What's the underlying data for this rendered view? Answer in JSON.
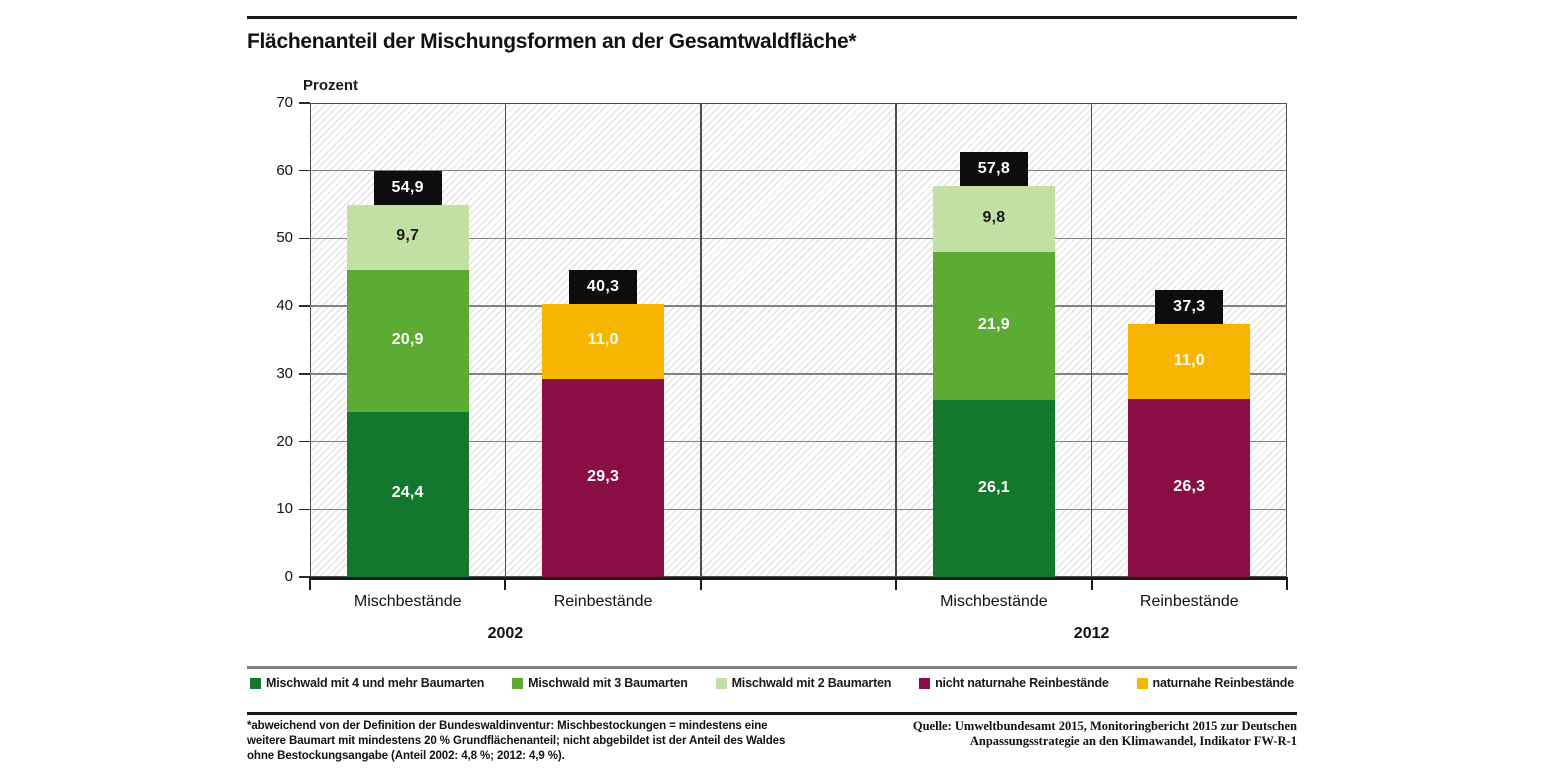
{
  "header": {
    "title": "Flächenanteil der Mischungsformen an der Gesamtwaldfläche*"
  },
  "chart_data": {
    "type": "bar",
    "stacked": true,
    "ylabel": "Prozent",
    "ylim": [
      0,
      70
    ],
    "yticks": [
      0,
      10,
      20,
      30,
      40,
      50,
      60,
      70
    ],
    "grid": true,
    "legend_position": "bottom",
    "hatch_background": true,
    "series": [
      {
        "name": "Mischwald mit 4 und mehr Baumarten",
        "color": "#13782e",
        "label_color": "#ffffff"
      },
      {
        "name": "Mischwald mit 3 Baumarten",
        "color": "#5cac33",
        "label_color": "#ffffff"
      },
      {
        "name": "Mischwald mit 2 Baumarten",
        "color": "#c3e0a4",
        "label_color": "#1a1a1a"
      },
      {
        "name": "nicht naturnahe Reinbestände",
        "color": "#8a0e45",
        "label_color": "#ffffff"
      },
      {
        "name": "naturnahe Reinbestände",
        "color": "#f7b500",
        "label_color": "#ffffff"
      }
    ],
    "groups": [
      {
        "label": "2002",
        "center_boundary": 1,
        "bars": [
          {
            "category": "Mischbestände",
            "slot": 0,
            "total": 54.9,
            "total_label": "54,9",
            "segments": [
              {
                "series": 0,
                "value": 24.4,
                "label": "24,4"
              },
              {
                "series": 1,
                "value": 20.9,
                "label": "20,9"
              },
              {
                "series": 2,
                "value": 9.7,
                "label": "9,7"
              }
            ]
          },
          {
            "category": "Reinbestände",
            "slot": 1,
            "total": 40.3,
            "total_label": "40,3",
            "segments": [
              {
                "series": 3,
                "value": 29.3,
                "label": "29,3"
              },
              {
                "series": 4,
                "value": 11.0,
                "label": "11,0"
              }
            ]
          }
        ]
      },
      {
        "label": "2012",
        "center_boundary": 4,
        "bars": [
          {
            "category": "Mischbestände",
            "slot": 3,
            "total": 57.8,
            "total_label": "57,8",
            "segments": [
              {
                "series": 0,
                "value": 26.1,
                "label": "26,1"
              },
              {
                "series": 1,
                "value": 21.9,
                "label": "21,9"
              },
              {
                "series": 2,
                "value": 9.8,
                "label": "9,8"
              }
            ]
          },
          {
            "category": "Reinbestände",
            "slot": 4,
            "total": 37.3,
            "total_label": "37,3",
            "segments": [
              {
                "series": 3,
                "value": 26.3,
                "label": "26,3"
              },
              {
                "series": 4,
                "value": 11.0,
                "label": "11,0"
              }
            ]
          }
        ]
      }
    ],
    "colors": {
      "axis": "#1a1a1a",
      "grid_horizontal": "#828282",
      "grid_vertical": "#4d4d4d",
      "hatch_line": "#dadada",
      "total_badge_bg": "#0d0d0d",
      "total_badge_text": "#ffffff",
      "rule_gray": "#7f7f7f",
      "rule_black": "#1a1a1a"
    }
  },
  "footnote": {
    "lines": [
      "*abweichend von der Definition der Bundeswaldinventur: Mischbestockungen = mindestens eine",
      "weitere Baumart mit mindestens 20 % Grundflächenanteil; nicht abgebildet ist der Anteil des Waldes",
      "ohne Bestockungsangabe (Anteil 2002: 4,8 %; 2012: 4,9 %)."
    ]
  },
  "source": {
    "lines": [
      "Quelle: Umweltbundesamt 2015, Monitoringbericht 2015 zur Deutschen",
      "Anpassungsstrategie an den Klimawandel, Indikator FW-R-1"
    ]
  }
}
